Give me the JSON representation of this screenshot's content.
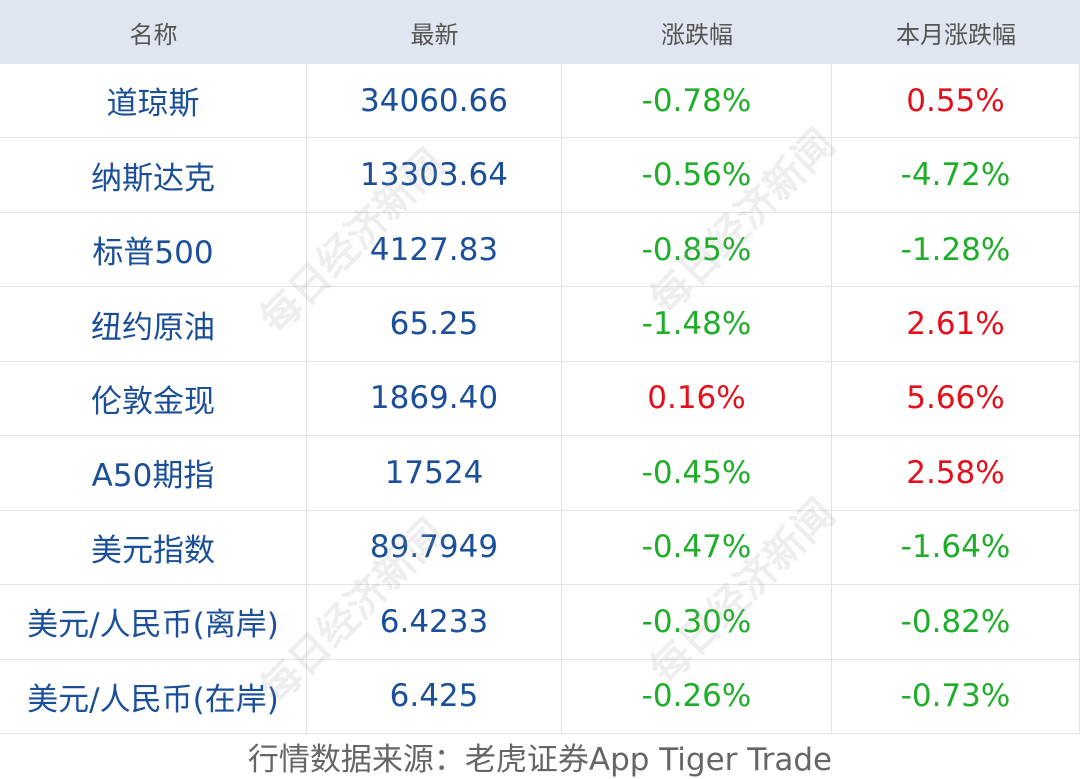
{
  "table": {
    "header": [
      "名称",
      "最新",
      "涨跌幅",
      "本月涨跌幅"
    ],
    "rows": [
      [
        "道琼斯",
        "34060.66",
        "-0.78%",
        "0.55%"
      ],
      [
        "纳斯达克",
        "13303.64",
        "-0.56%",
        "-4.72%"
      ],
      [
        "标普500",
        "4127.83",
        "-0.85%",
        "-1.28%"
      ],
      [
        "纽约原油",
        "65.25",
        "-1.48%",
        "2.61%"
      ],
      [
        "伦敦金现",
        "1869.40",
        "0.16%",
        "5.66%"
      ],
      [
        "A50期指",
        "17524",
        "-0.45%",
        "2.58%"
      ],
      [
        "美元指数",
        "89.7949",
        "-0.47%",
        "-1.64%"
      ],
      [
        "美元/人民币(离岸)",
        "6.4233",
        "-0.30%",
        "-0.82%"
      ],
      [
        "美元/人民币(在岸)",
        "6.425",
        "-0.26%",
        "-0.73%"
      ]
    ]
  },
  "footer": "行情数据来源：老虎证券App Tiger Trade",
  "watermark": "每日经济新闻"
}
